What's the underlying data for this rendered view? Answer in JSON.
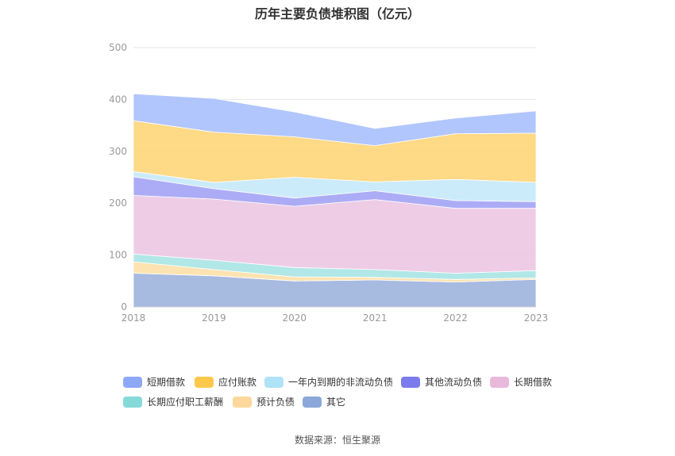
{
  "title": "历年主要负债堆积图（亿元）",
  "source": "数据来源：恒生聚源",
  "chart_data": {
    "type": "area",
    "stacked": true,
    "title": "历年主要负债堆积图（亿元）",
    "categories": [
      "2018",
      "2019",
      "2020",
      "2021",
      "2022",
      "2023"
    ],
    "ylim": [
      0,
      500
    ],
    "yticks": [
      0,
      100,
      200,
      300,
      400,
      500
    ],
    "grid": true,
    "legend_position": "bottom",
    "series": [
      {
        "name": "其它",
        "color": "#9db3dd",
        "values": [
          65,
          60,
          50,
          52,
          48,
          53
        ]
      },
      {
        "name": "预计负债",
        "color": "#fde0a8",
        "values": [
          22,
          12,
          8,
          5,
          5,
          3
        ]
      },
      {
        "name": "长期应付职工薪酬",
        "color": "#a8e4e4",
        "values": [
          15,
          18,
          18,
          15,
          12,
          14
        ]
      },
      {
        "name": "长期借款",
        "color": "#ecc7e3",
        "values": [
          113,
          118,
          118,
          135,
          125,
          120
        ]
      },
      {
        "name": "其他流动负债",
        "color": "#a3a3f5",
        "values": [
          36,
          20,
          16,
          17,
          15,
          13
        ]
      },
      {
        "name": "一年内到期的非流动负债",
        "color": "#c5e9fb",
        "values": [
          10,
          12,
          40,
          17,
          41,
          37
        ]
      },
      {
        "name": "应付账款",
        "color": "#fed579",
        "values": [
          98,
          97,
          78,
          70,
          88,
          95
        ]
      },
      {
        "name": "短期借款",
        "color": "#a9c0fc",
        "values": [
          52,
          65,
          48,
          33,
          30,
          43
        ]
      }
    ],
    "legend": [
      {
        "name": "短期借款",
        "color": "#8ea8f8"
      },
      {
        "name": "应付账款",
        "color": "#fec84a"
      },
      {
        "name": "一年内到期的非流动负债",
        "color": "#b0e2f8"
      },
      {
        "name": "其他流动负债",
        "color": "#7b7bee"
      },
      {
        "name": "长期借款",
        "color": "#e9b9dc"
      },
      {
        "name": "长期应付职工薪酬",
        "color": "#86d9d9"
      },
      {
        "name": "预计负债",
        "color": "#fdd79b"
      },
      {
        "name": "其它",
        "color": "#8ca7d9"
      }
    ]
  }
}
